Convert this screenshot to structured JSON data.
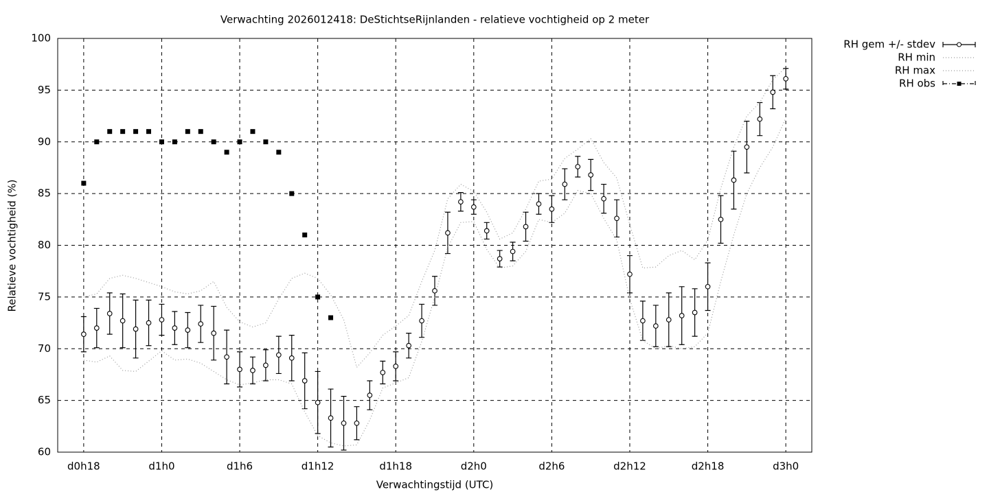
{
  "chart_data": {
    "type": "errorbar",
    "title": "Verwachting 2026012418: DeStichtseRijnlanden - relatieve vochtigheid op 2 meter",
    "xlabel": "Verwachtingstijd (UTC)",
    "ylabel": "Relatieve vochtigheid (%)",
    "x": [
      18,
      19,
      20,
      21,
      22,
      23,
      24,
      25,
      26,
      27,
      28,
      29,
      30,
      31,
      32,
      33,
      34,
      35,
      36,
      37,
      38,
      39,
      40,
      41,
      42,
      43,
      44,
      45,
      46,
      47,
      48,
      49,
      50,
      51,
      52,
      53,
      54,
      55,
      56,
      57,
      58,
      59,
      60,
      61,
      62,
      63,
      64,
      65,
      66,
      67,
      68,
      69,
      70,
      71,
      72
    ],
    "xlim": [
      16,
      74
    ],
    "xticks": [
      {
        "value": 18,
        "label": "d0h18"
      },
      {
        "value": 24,
        "label": "d1h0"
      },
      {
        "value": 30,
        "label": "d1h6"
      },
      {
        "value": 36,
        "label": "d1h12"
      },
      {
        "value": 42,
        "label": "d1h18"
      },
      {
        "value": 48,
        "label": "d2h0"
      },
      {
        "value": 54,
        "label": "d2h6"
      },
      {
        "value": 60,
        "label": "d2h12"
      },
      {
        "value": 66,
        "label": "d2h18"
      },
      {
        "value": 72,
        "label": "d3h0"
      }
    ],
    "ylim": [
      60,
      100
    ],
    "yticks": [
      60,
      65,
      70,
      75,
      80,
      85,
      90,
      95,
      100
    ],
    "grid": true,
    "legend": "outside-top-right",
    "series": [
      {
        "name": "RH gem +/- stdev",
        "color": "#000000",
        "style": "errorbar",
        "values": [
          71.4,
          72.0,
          73.4,
          72.7,
          71.9,
          72.5,
          72.8,
          72.0,
          71.8,
          72.4,
          71.5,
          69.2,
          68.0,
          67.9,
          68.4,
          69.4,
          69.1,
          66.9,
          64.8,
          63.3,
          62.8,
          62.8,
          65.5,
          67.7,
          68.3,
          70.3,
          72.7,
          75.6,
          81.2,
          84.2,
          83.7,
          81.4,
          78.7,
          79.4,
          81.8,
          84.0,
          83.5,
          85.9,
          87.6,
          86.8,
          84.5,
          82.6,
          77.2,
          72.7,
          72.2,
          72.8,
          73.2,
          73.5,
          76.0,
          82.5,
          86.3,
          89.5,
          92.2,
          94.8,
          96.1
        ],
        "errors": [
          1.7,
          1.9,
          2.0,
          2.6,
          2.8,
          2.2,
          1.5,
          1.6,
          1.7,
          1.8,
          2.6,
          2.6,
          1.7,
          1.3,
          1.5,
          1.8,
          2.2,
          2.7,
          3.0,
          2.8,
          2.6,
          1.6,
          1.4,
          1.1,
          1.4,
          1.2,
          1.6,
          1.4,
          2.0,
          0.9,
          0.7,
          0.8,
          0.8,
          0.9,
          1.4,
          1.0,
          1.3,
          1.5,
          1.0,
          1.5,
          1.4,
          1.8,
          1.8,
          1.9,
          2.0,
          2.6,
          2.8,
          2.3,
          2.3,
          2.3,
          2.8,
          2.5,
          1.6,
          1.6,
          1.0
        ]
      },
      {
        "name": "RH min",
        "color": "#999999",
        "style": "dotted",
        "values": [
          68.9,
          68.7,
          69.3,
          67.9,
          67.8,
          68.8,
          69.8,
          68.9,
          69.0,
          68.6,
          67.8,
          67.0,
          66.5,
          66.7,
          67.0,
          67.0,
          66.6,
          63.9,
          61.6,
          60.9,
          60.6,
          60.7,
          63.1,
          66.2,
          66.7,
          67.2,
          70.7,
          75.0,
          79.8,
          82.2,
          82.3,
          79.6,
          77.8,
          78.0,
          79.4,
          82.5,
          82.2,
          83.1,
          85.3,
          85.0,
          82.6,
          80.5,
          74.8,
          70.8,
          70.0,
          70.3,
          70.0,
          70.2,
          71.5,
          76.5,
          81.0,
          85.0,
          87.5,
          89.5,
          92.3
        ]
      },
      {
        "name": "RH max",
        "color": "#999999",
        "style": "dotted",
        "values": [
          75.0,
          75.3,
          76.8,
          77.1,
          76.8,
          76.4,
          76.0,
          75.5,
          75.3,
          75.6,
          76.5,
          74.0,
          72.6,
          72.1,
          72.5,
          74.8,
          76.8,
          77.3,
          76.8,
          75.2,
          72.8,
          68.2,
          69.6,
          71.3,
          72.2,
          73.2,
          76.5,
          79.5,
          84.5,
          85.9,
          85.2,
          83.2,
          80.6,
          81.2,
          83.5,
          86.2,
          86.4,
          88.4,
          89.3,
          90.3,
          88.0,
          86.5,
          82.0,
          77.8,
          77.9,
          79.0,
          79.5,
          78.6,
          80.5,
          85.5,
          89.5,
          92.5,
          93.8,
          96.0,
          97.2
        ]
      },
      {
        "name": "RH obs",
        "color": "#000000",
        "style": "square",
        "values": [
          86,
          90,
          91,
          91,
          91,
          91,
          90,
          90,
          91,
          91,
          90,
          89,
          90,
          91,
          90,
          89,
          85,
          81,
          75,
          73,
          null,
          null,
          null,
          null,
          null,
          null,
          null,
          null,
          null,
          null,
          null,
          null,
          null,
          null,
          null,
          null,
          null,
          null,
          null,
          null,
          null,
          null,
          null,
          null,
          null,
          null,
          null,
          null,
          null,
          null,
          null,
          null,
          null,
          null,
          null
        ]
      }
    ]
  }
}
